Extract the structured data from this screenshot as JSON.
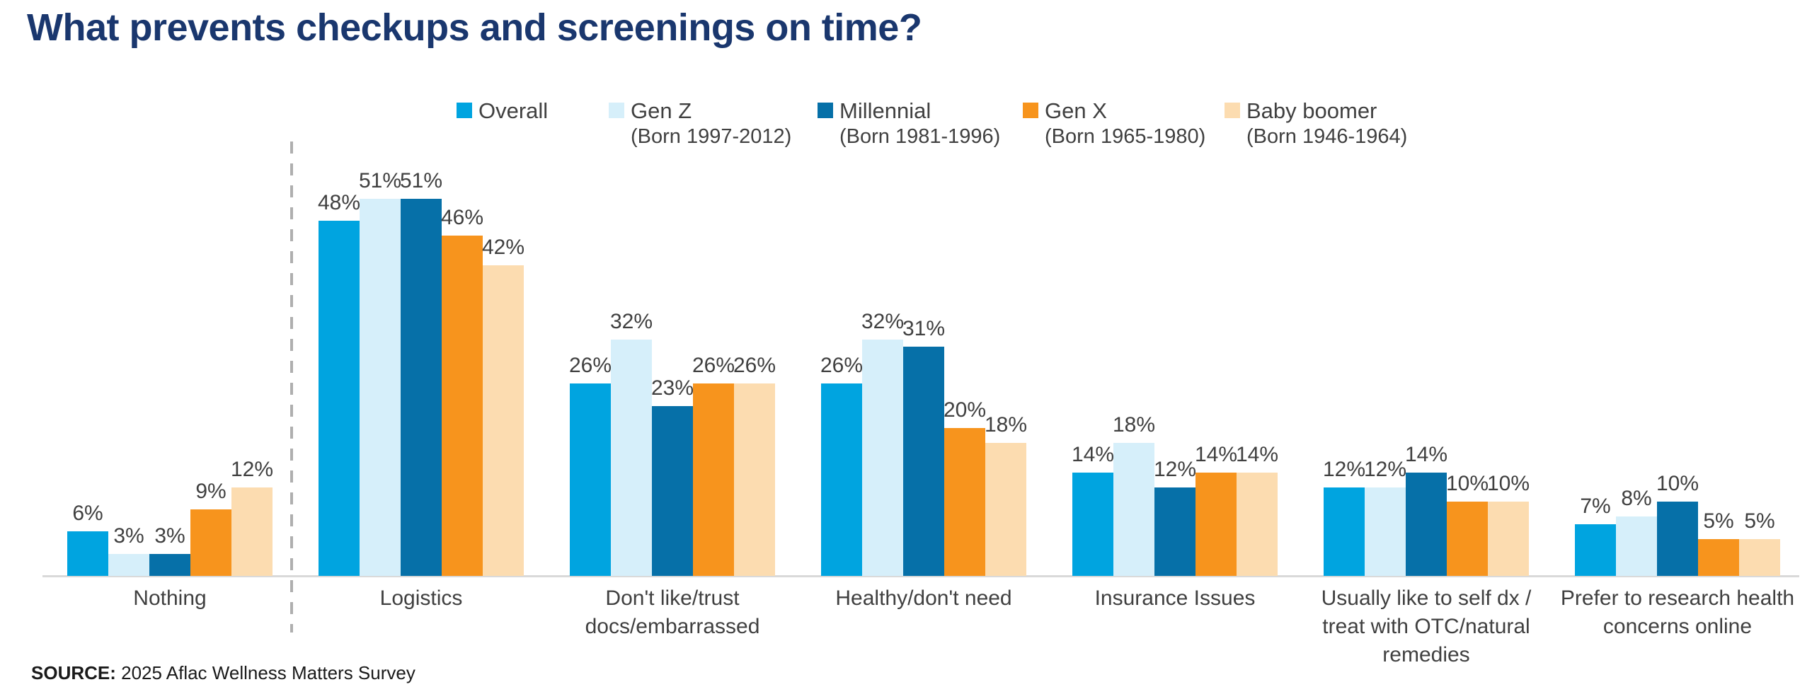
{
  "title": "What prevents checkups and screenings on time?",
  "source": {
    "label": "SOURCE:",
    "text": " 2025 Aflac Wellness Matters Survey"
  },
  "legend": [
    {
      "name": "Overall",
      "sub": "",
      "color": "#00A4E0"
    },
    {
      "name": "Gen Z",
      "sub": "(Born 1997-2012)",
      "color": "#D6EFFA"
    },
    {
      "name": "Millennial",
      "sub": "(Born 1981-1996)",
      "color": "#0670A8"
    },
    {
      "name": "Gen X",
      "sub": "(Born 1965-1980)",
      "color": "#F7941D"
    },
    {
      "name": "Baby boomer",
      "sub": "(Born 1946-1964)",
      "color": "#FCDCB0"
    }
  ],
  "chart_data": {
    "type": "bar",
    "title": "What prevents checkups and screenings on time?",
    "categories": [
      "Nothing",
      "Logistics",
      "Don't like/trust docs/embarrassed",
      "Healthy/don't need",
      "Insurance Issues",
      "Usually like to self dx / treat with OTC/natural remedies",
      "Prefer to research health concerns online"
    ],
    "series": [
      {
        "name": "Overall",
        "color": "#00A4E0",
        "values": [
          6,
          48,
          26,
          26,
          14,
          12,
          7
        ]
      },
      {
        "name": "Gen Z",
        "color": "#D6EFFA",
        "values": [
          3,
          51,
          32,
          32,
          18,
          12,
          8
        ]
      },
      {
        "name": "Millennial",
        "color": "#0670A8",
        "values": [
          3,
          51,
          23,
          31,
          12,
          14,
          10
        ]
      },
      {
        "name": "Gen X",
        "color": "#F7941D",
        "values": [
          9,
          46,
          26,
          20,
          14,
          10,
          5
        ]
      },
      {
        "name": "Baby boomer",
        "color": "#FCDCB0",
        "values": [
          12,
          42,
          26,
          18,
          14,
          10,
          5
        ]
      }
    ],
    "value_suffix": "%",
    "xlabel": "",
    "ylabel": "",
    "ylim": [
      0,
      55
    ],
    "grid": false,
    "axis_ticks_visible": false,
    "legend_position": "top",
    "separator_after_category": "Nothing",
    "colors": {
      "title": "#1A376E",
      "label_text": "#404040",
      "axis_line": "#D9D9D9",
      "separator_line": "#AFAFAF"
    }
  }
}
